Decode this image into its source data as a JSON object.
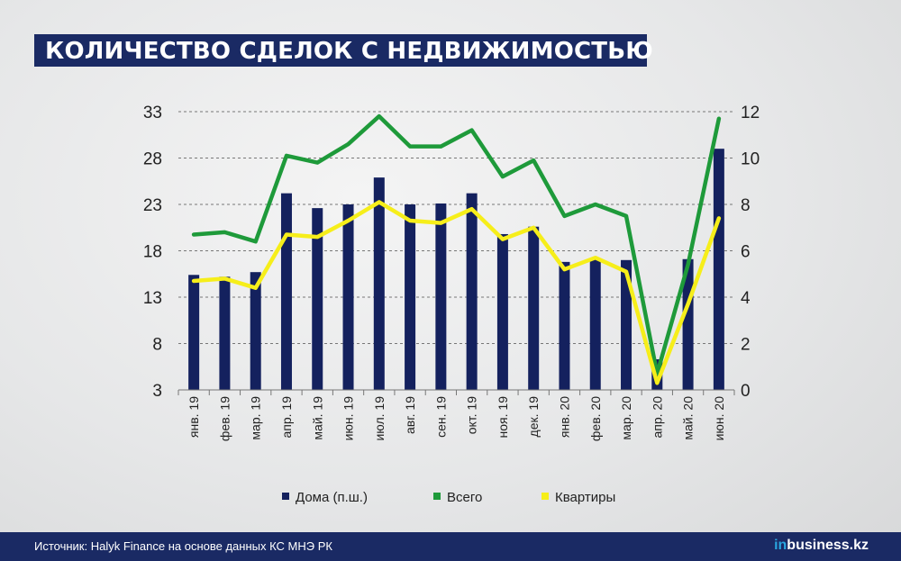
{
  "title": "КОЛИЧЕСТВО СДЕЛОК С НЕДВИЖИМОСТЬЮ",
  "footer": {
    "source": "Источник: Halyk Finance на основе данных КС МНЭ РК",
    "logo_prefix": "in",
    "logo_suffix": "business.kz"
  },
  "colors": {
    "bars": "#14215e",
    "total": "#1e9a3a",
    "flats": "#f6ee1a",
    "brand": "#1a2a64"
  },
  "chart_data": {
    "type": "bar",
    "categories": [
      "янв. 19",
      "фев. 19",
      "мар. 19",
      "апр. 19",
      "май. 19",
      "июн. 19",
      "июл. 19",
      "авг. 19",
      "сен. 19",
      "окт. 19",
      "ноя. 19",
      "дек. 19",
      "янв. 20",
      "фев. 20",
      "мар. 20",
      "апр. 20",
      "май. 20",
      "июн. 20"
    ],
    "left_axis": {
      "ylim": [
        3,
        33
      ],
      "ticks": [
        3,
        8,
        13,
        18,
        23,
        28,
        33
      ]
    },
    "right_axis": {
      "ylim": [
        0,
        12
      ],
      "ticks": [
        0,
        2,
        4,
        6,
        8,
        10,
        12
      ]
    },
    "grid": "horizontal dashed",
    "legend_position": "bottom",
    "series": [
      {
        "name": "Дома (п.ш.)",
        "type": "bar",
        "axis": "left",
        "values": [
          15.4,
          15.2,
          15.7,
          24.2,
          22.6,
          23.0,
          25.9,
          23.0,
          23.1,
          24.2,
          19.8,
          20.6,
          16.8,
          17.1,
          17.0,
          6.3,
          17.1,
          29.0
        ]
      },
      {
        "name": "Всего",
        "type": "line",
        "axis": "right",
        "values": [
          6.7,
          6.8,
          6.4,
          10.1,
          9.8,
          10.6,
          11.8,
          10.5,
          10.5,
          11.2,
          9.2,
          9.9,
          7.5,
          8.0,
          7.5,
          0.7,
          5.4,
          11.7
        ]
      },
      {
        "name": "Квартиры",
        "type": "line",
        "axis": "right",
        "values": [
          4.7,
          4.8,
          4.4,
          6.7,
          6.6,
          7.3,
          8.1,
          7.3,
          7.2,
          7.8,
          6.5,
          7.0,
          5.2,
          5.7,
          5.1,
          0.3,
          3.7,
          7.4
        ]
      }
    ]
  }
}
